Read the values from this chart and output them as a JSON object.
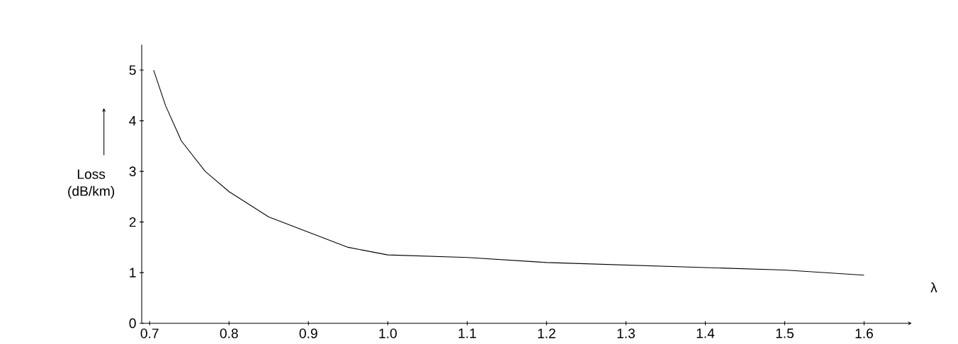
{
  "chart_data": {
    "type": "line",
    "xlabel": "λ",
    "ylabel": "Loss (dB/km)",
    "x": [
      0.705,
      0.72,
      0.74,
      0.77,
      0.8,
      0.85,
      0.9,
      0.95,
      1.0,
      1.1,
      1.2,
      1.3,
      1.4,
      1.5,
      1.6
    ],
    "series": [
      {
        "color": "#000000",
        "values": [
          5,
          4.3,
          3.6,
          3.0,
          2.6,
          2.1,
          1.8,
          1.5,
          1.35,
          1.3,
          1.2,
          1.15,
          1.1,
          1.05,
          0.95
        ]
      }
    ],
    "xlim": [
      0.69,
      1.66
    ],
    "ylim": [
      0,
      5.5
    ],
    "xticks": [
      {
        "value": 0.7,
        "label": "0.7"
      },
      {
        "value": 0.8,
        "label": "0.8"
      },
      {
        "value": 0.9,
        "label": "0.9"
      },
      {
        "value": 1.0,
        "label": "1.0"
      },
      {
        "value": 1.1,
        "label": "1.1"
      },
      {
        "value": 1.2,
        "label": "1.2"
      },
      {
        "value": 1.3,
        "label": "1.3"
      },
      {
        "value": 1.4,
        "label": "1.4"
      },
      {
        "value": 1.5,
        "label": "1.5"
      },
      {
        "value": 1.6,
        "label": "1.6"
      }
    ],
    "yticks": [
      0,
      1,
      2,
      3,
      4,
      5
    ],
    "marker": "none",
    "line_style": "solid"
  }
}
